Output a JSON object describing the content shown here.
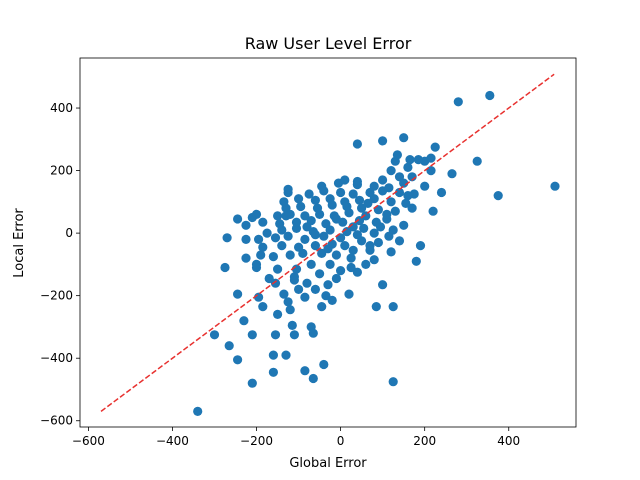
{
  "chart_data": {
    "type": "scatter",
    "title": "Raw User Level Error",
    "xlabel": "Global Error",
    "ylabel": "Local Error",
    "xlim": [
      -620,
      560
    ],
    "ylim": [
      -620,
      560
    ],
    "xticks": [
      -600,
      -400,
      -200,
      0,
      200,
      400
    ],
    "yticks": [
      -600,
      -400,
      -200,
      0,
      200,
      400
    ],
    "xtick_labels": [
      "−600",
      "−400",
      "−200",
      "0",
      "200",
      "400"
    ],
    "ytick_labels": [
      "−600",
      "−400",
      "−200",
      "0",
      "200",
      "400"
    ],
    "grid": false,
    "point_color": "#1f77b4",
    "reference_line": {
      "style": "dashed",
      "color": "#e8312f",
      "from": [
        -570,
        -570
      ],
      "to": [
        508,
        508
      ]
    },
    "points": [
      [
        -340,
        -570
      ],
      [
        -210,
        -480
      ],
      [
        125,
        -475
      ],
      [
        -65,
        -465
      ],
      [
        -160,
        -445
      ],
      [
        -85,
        -440
      ],
      [
        -40,
        -420
      ],
      [
        -245,
        -405
      ],
      [
        -160,
        -390
      ],
      [
        -130,
        -390
      ],
      [
        -265,
        -360
      ],
      [
        -300,
        -325
      ],
      [
        -210,
        -325
      ],
      [
        -155,
        -325
      ],
      [
        -110,
        -325
      ],
      [
        -115,
        -295
      ],
      [
        -70,
        -300
      ],
      [
        -65,
        -320
      ],
      [
        -230,
        -280
      ],
      [
        -150,
        -260
      ],
      [
        -120,
        -245
      ],
      [
        -45,
        -235
      ],
      [
        85,
        -235
      ],
      [
        125,
        -235
      ],
      [
        -185,
        -235
      ],
      [
        -125,
        -220
      ],
      [
        -85,
        -205
      ],
      [
        -35,
        -200
      ],
      [
        -20,
        -215
      ],
      [
        -195,
        -205
      ],
      [
        -245,
        -195
      ],
      [
        -135,
        -195
      ],
      [
        -100,
        -180
      ],
      [
        -60,
        -180
      ],
      [
        20,
        -195
      ],
      [
        -80,
        -160
      ],
      [
        -30,
        -165
      ],
      [
        -10,
        -145
      ],
      [
        -155,
        -160
      ],
      [
        -170,
        -145
      ],
      [
        -110,
        -150
      ],
      [
        -50,
        -130
      ],
      [
        0,
        -120
      ],
      [
        40,
        -125
      ],
      [
        100,
        -165
      ],
      [
        -275,
        -110
      ],
      [
        -200,
        -110
      ],
      [
        -150,
        -115
      ],
      [
        -105,
        -115
      ],
      [
        -70,
        -100
      ],
      [
        -25,
        -100
      ],
      [
        25,
        -110
      ],
      [
        60,
        -100
      ],
      [
        80,
        -85
      ],
      [
        180,
        -90
      ],
      [
        -225,
        -80
      ],
      [
        -190,
        -70
      ],
      [
        -160,
        -75
      ],
      [
        -120,
        -70
      ],
      [
        -90,
        -65
      ],
      [
        -45,
        -65
      ],
      [
        -10,
        -70
      ],
      [
        30,
        -55
      ],
      [
        70,
        -55
      ],
      [
        120,
        -60
      ],
      [
        -185,
        -45
      ],
      [
        -140,
        -40
      ],
      [
        -100,
        -45
      ],
      [
        -60,
        -40
      ],
      [
        -20,
        -35
      ],
      [
        10,
        -40
      ],
      [
        50,
        -25
      ],
      [
        90,
        -30
      ],
      [
        140,
        -25
      ],
      [
        190,
        -40
      ],
      [
        -225,
        -20
      ],
      [
        -195,
        -20
      ],
      [
        -155,
        -15
      ],
      [
        -125,
        -10
      ],
      [
        -85,
        -20
      ],
      [
        -40,
        -10
      ],
      [
        0,
        -15
      ],
      [
        40,
        -5
      ],
      [
        80,
        0
      ],
      [
        115,
        -10
      ],
      [
        -270,
        -15
      ],
      [
        -175,
        0
      ],
      [
        -140,
        10
      ],
      [
        -105,
        15
      ],
      [
        -65,
        5
      ],
      [
        -25,
        10
      ],
      [
        15,
        5
      ],
      [
        55,
        15
      ],
      [
        95,
        20
      ],
      [
        125,
        10
      ],
      [
        -225,
        25
      ],
      [
        -185,
        35
      ],
      [
        -145,
        30
      ],
      [
        -105,
        35
      ],
      [
        -70,
        40
      ],
      [
        -35,
        30
      ],
      [
        5,
        35
      ],
      [
        45,
        40
      ],
      [
        85,
        35
      ],
      [
        150,
        25
      ],
      [
        -210,
        50
      ],
      [
        -245,
        45
      ],
      [
        -150,
        55
      ],
      [
        -120,
        60
      ],
      [
        -85,
        55
      ],
      [
        -50,
        60
      ],
      [
        -15,
        55
      ],
      [
        20,
        65
      ],
      [
        60,
        55
      ],
      [
        110,
        45
      ],
      [
        -200,
        60
      ],
      [
        -130,
        80
      ],
      [
        -95,
        85
      ],
      [
        -55,
        80
      ],
      [
        -20,
        90
      ],
      [
        15,
        85
      ],
      [
        50,
        80
      ],
      [
        90,
        75
      ],
      [
        130,
        70
      ],
      [
        170,
        80
      ],
      [
        -135,
        100
      ],
      [
        -100,
        110
      ],
      [
        -60,
        105
      ],
      [
        -25,
        110
      ],
      [
        10,
        100
      ],
      [
        45,
        105
      ],
      [
        80,
        110
      ],
      [
        120,
        100
      ],
      [
        155,
        95
      ],
      [
        220,
        70
      ],
      [
        -125,
        130
      ],
      [
        -75,
        125
      ],
      [
        -40,
        135
      ],
      [
        0,
        130
      ],
      [
        30,
        125
      ],
      [
        70,
        130
      ],
      [
        100,
        135
      ],
      [
        140,
        130
      ],
      [
        175,
        125
      ],
      [
        240,
        130
      ],
      [
        -125,
        140
      ],
      [
        -45,
        150
      ],
      [
        -5,
        160
      ],
      [
        40,
        155
      ],
      [
        80,
        150
      ],
      [
        115,
        145
      ],
      [
        150,
        160
      ],
      [
        200,
        150
      ],
      [
        10,
        170
      ],
      [
        40,
        165
      ],
      [
        100,
        170
      ],
      [
        140,
        180
      ],
      [
        170,
        180
      ],
      [
        215,
        200
      ],
      [
        265,
        190
      ],
      [
        120,
        200
      ],
      [
        160,
        210
      ],
      [
        200,
        230
      ],
      [
        185,
        235
      ],
      [
        130,
        230
      ],
      [
        165,
        235
      ],
      [
        325,
        230
      ],
      [
        135,
        250
      ],
      [
        215,
        240
      ],
      [
        225,
        275
      ],
      [
        100,
        295
      ],
      [
        40,
        285
      ],
      [
        150,
        305
      ],
      [
        280,
        420
      ],
      [
        355,
        440
      ],
      [
        375,
        120
      ],
      [
        510,
        150
      ],
      [
        -130,
        55
      ],
      [
        -80,
        20
      ],
      [
        -30,
        -50
      ],
      [
        25,
        -80
      ],
      [
        70,
        -40
      ],
      [
        110,
        60
      ],
      [
        160,
        120
      ],
      [
        -60,
        -5
      ],
      [
        -200,
        -100
      ],
      [
        -110,
        -140
      ],
      [
        30,
        20
      ],
      [
        -10,
        45
      ],
      [
        65,
        95
      ]
    ]
  }
}
